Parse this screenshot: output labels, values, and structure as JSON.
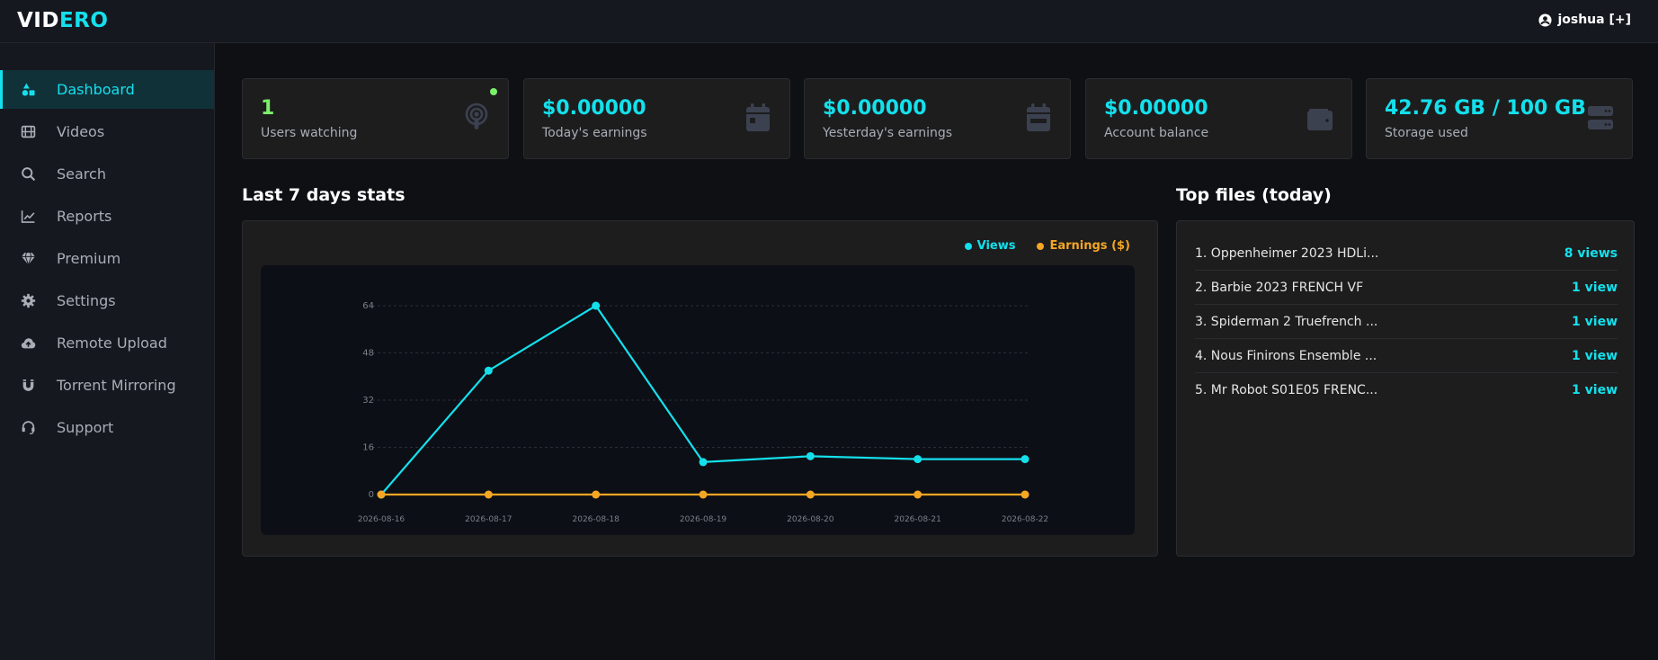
{
  "header": {
    "logo_part1": "VID",
    "logo_part2": "ERO",
    "user_label": "joshua [+]"
  },
  "sidebar": {
    "items": [
      {
        "label": "Dashboard",
        "icon": "shapes-icon",
        "active": true
      },
      {
        "label": "Videos",
        "icon": "film-icon",
        "active": false
      },
      {
        "label": "Search",
        "icon": "search-icon",
        "active": false
      },
      {
        "label": "Reports",
        "icon": "chart-line-icon",
        "active": false
      },
      {
        "label": "Premium",
        "icon": "gem-icon",
        "active": false
      },
      {
        "label": "Settings",
        "icon": "gear-icon",
        "active": false
      },
      {
        "label": "Remote Upload",
        "icon": "cloud-upload-icon",
        "active": false
      },
      {
        "label": "Torrent Mirroring",
        "icon": "magnet-icon",
        "active": false
      },
      {
        "label": "Support",
        "icon": "headset-icon",
        "active": false
      }
    ]
  },
  "cards": [
    {
      "value": "1",
      "label": "Users watching",
      "icon": "podcast-icon"
    },
    {
      "value": "$0.00000",
      "label": "Today's earnings",
      "icon": "calendar-day-icon"
    },
    {
      "value": "$0.00000",
      "label": "Yesterday's earnings",
      "icon": "calendar-week-icon"
    },
    {
      "value": "$0.00000",
      "label": "Account balance",
      "icon": "wallet-icon"
    },
    {
      "value": "42.76 GB / 100 GB",
      "label": "Storage used",
      "icon": "server-icon"
    }
  ],
  "stats": {
    "title": "Last 7 days stats"
  },
  "top_files": {
    "title": "Top files (today)",
    "items": [
      {
        "name": "1. Oppenheimer 2023 HDLi...",
        "views": "8 views"
      },
      {
        "name": "2. Barbie 2023 FRENCH VF",
        "views": "1 view"
      },
      {
        "name": "3. Spiderman 2 Truefrench ...",
        "views": "1 view"
      },
      {
        "name": "4. Nous Finirons Ensemble ...",
        "views": "1 view"
      },
      {
        "name": "5. Mr Robot S01E05 FRENC...",
        "views": "1 view"
      }
    ]
  },
  "colors": {
    "accent": "#14e0ec",
    "earnings": "#f5a623",
    "online": "#7cf06a"
  },
  "chart_data": {
    "type": "line",
    "x": [
      "2026-08-16",
      "2026-08-17",
      "2026-08-18",
      "2026-08-19",
      "2026-08-20",
      "2026-08-21",
      "2026-08-22"
    ],
    "series": [
      {
        "name": "Views",
        "color": "#14e0ec",
        "values": [
          0,
          42,
          64,
          11,
          13,
          12,
          12
        ]
      },
      {
        "name": "Earnings ($)",
        "color": "#f5a623",
        "values": [
          0,
          0,
          0,
          0,
          0,
          0,
          0
        ]
      }
    ],
    "yticks": [
      "0",
      "16",
      "32",
      "48",
      "64"
    ],
    "ylim": [
      0,
      64
    ],
    "grid": true,
    "legend": "top-right"
  }
}
